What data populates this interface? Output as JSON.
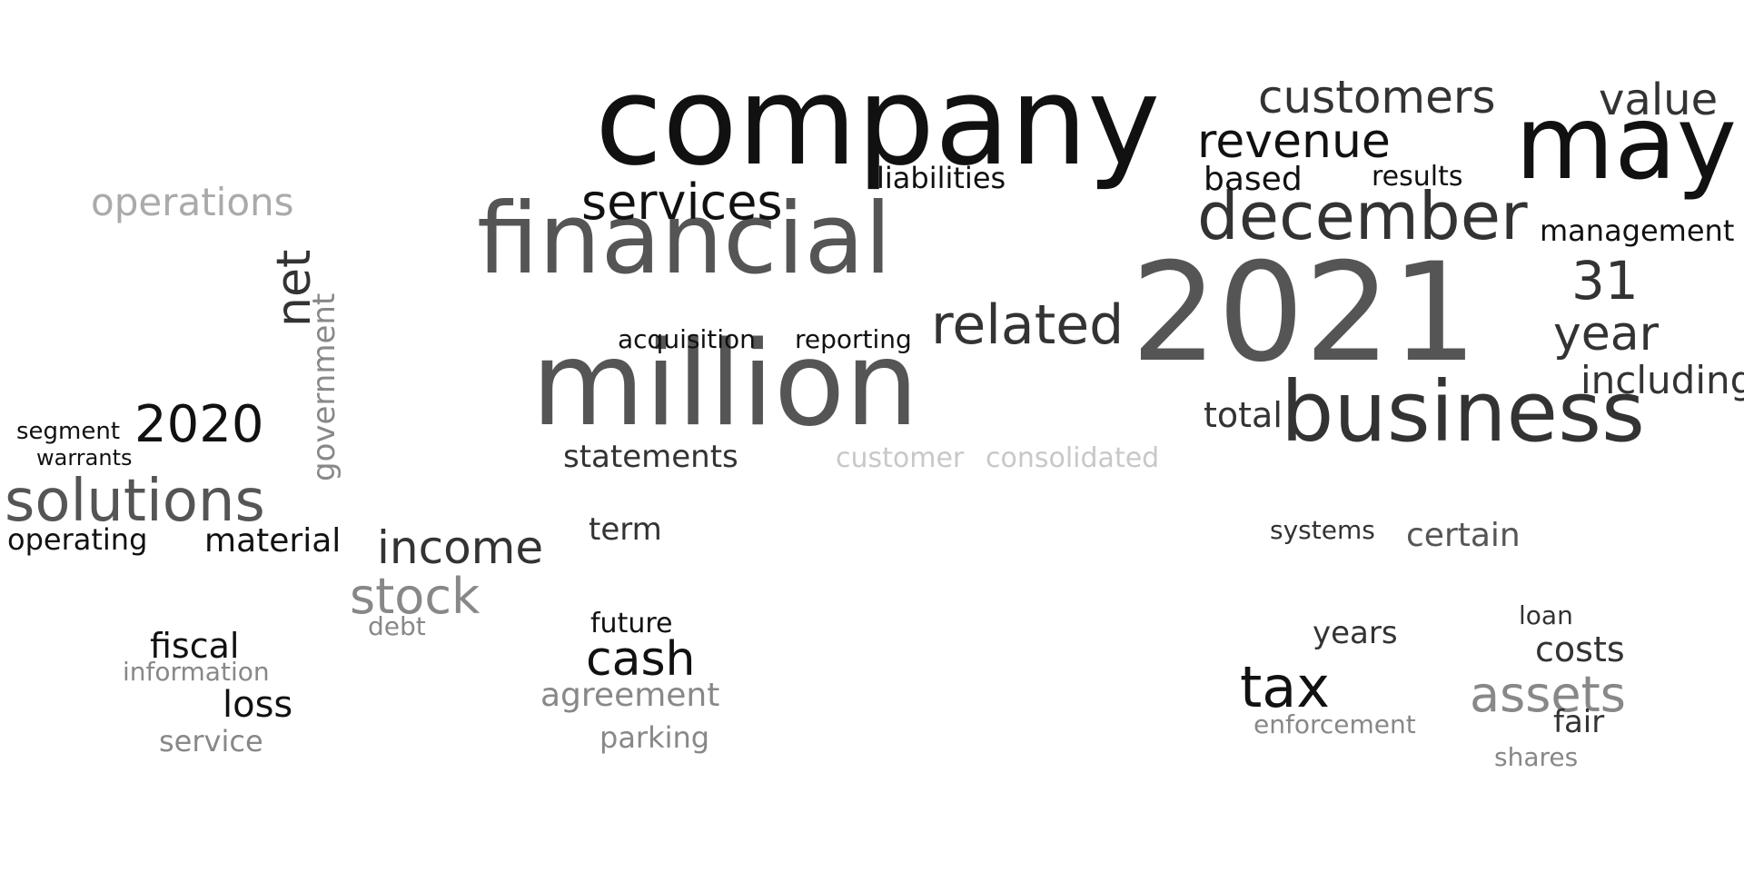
{
  "colors": {
    "black": "#111111",
    "dark": "#333333",
    "mid": "#555555",
    "gray": "#888888",
    "light": "#aaaaaa",
    "faint": "#c8c8c8"
  },
  "words": [
    "company",
    "2021",
    "million",
    "financial",
    "may",
    "business",
    "december",
    "revenue",
    "customers",
    "services",
    "related",
    "value",
    "year",
    "solutions",
    "2020",
    "income",
    "stock",
    "cash",
    "tax",
    "assets",
    "statements",
    "net",
    "operations",
    "government",
    "liabilities",
    "including",
    "management",
    "31",
    "based",
    "total",
    "results",
    "acquisition",
    "reporting",
    "consolidated",
    "customer",
    "fiscal",
    "loss",
    "agreement",
    "service",
    "parking",
    "certain",
    "years",
    "costs",
    "fair",
    "material",
    "segment",
    "operating",
    "warrants",
    "information",
    "enforcement",
    "debt",
    "term",
    "future",
    "systems",
    "loan",
    "shares"
  ]
}
